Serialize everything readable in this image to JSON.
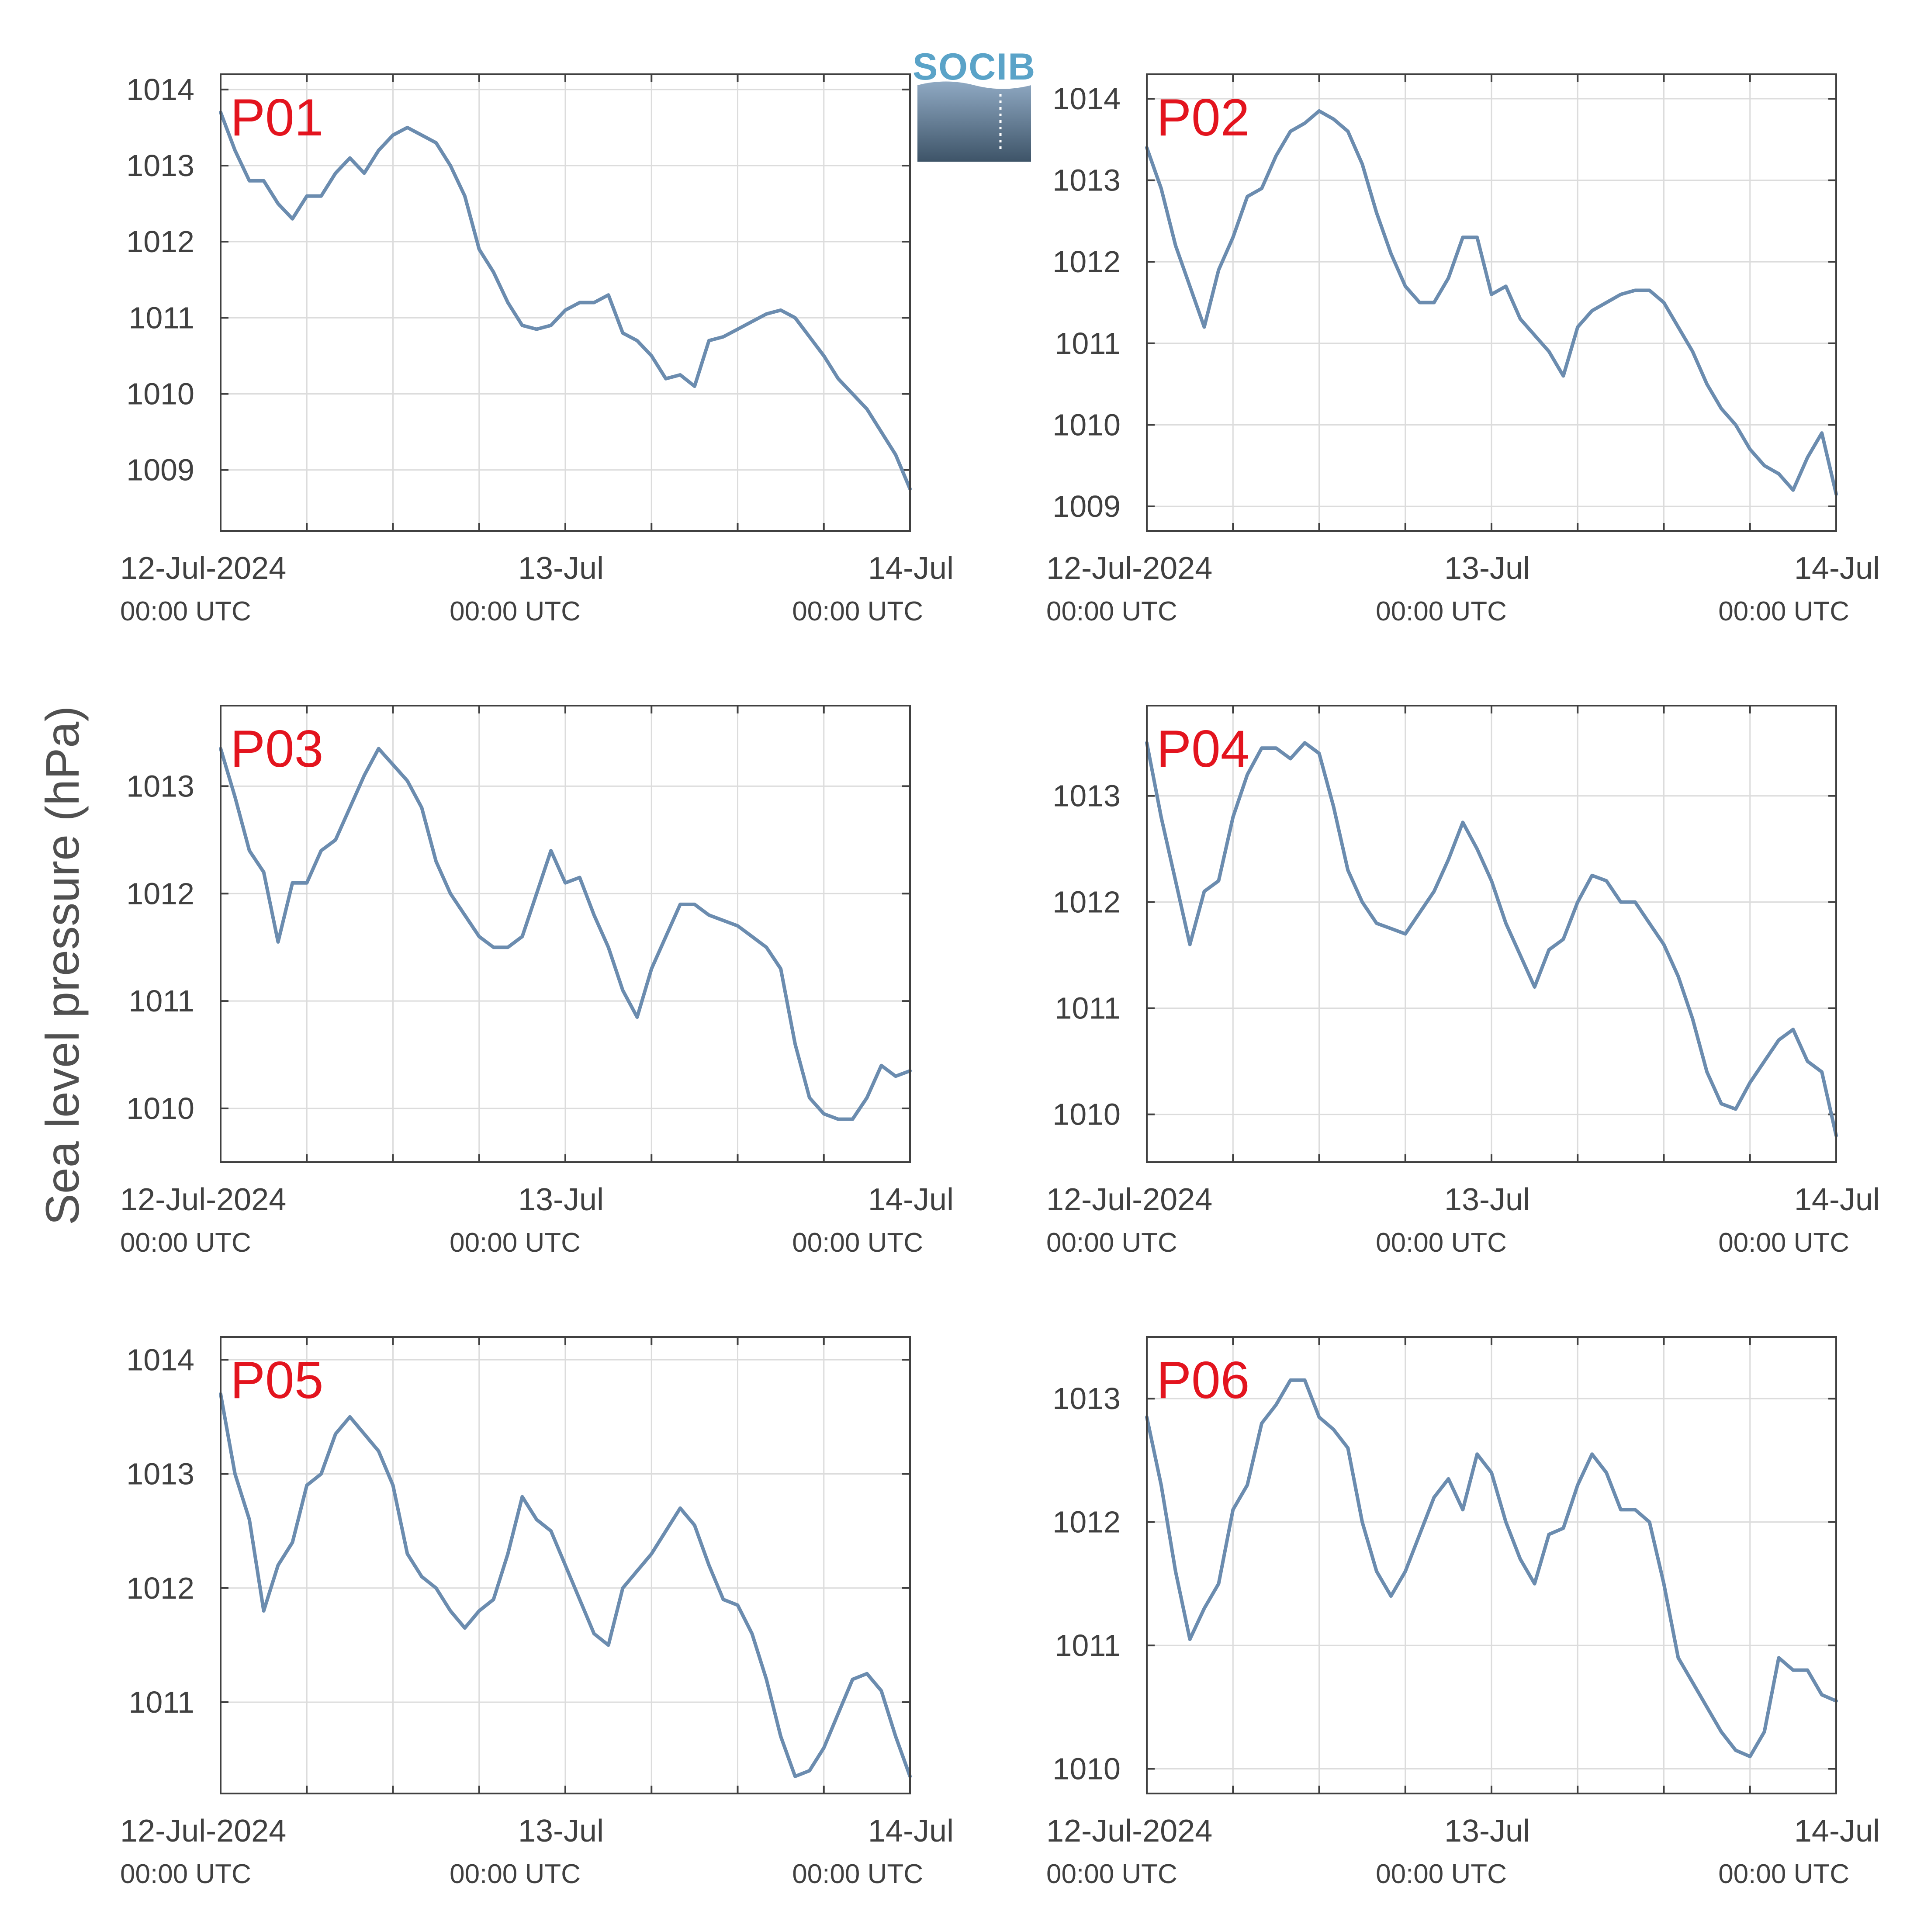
{
  "figure": {
    "ylabel": "Sea level pressure (hPa)",
    "logo_text": "SOCIB",
    "colors": {
      "line": "#6b8caf",
      "panel_label": "#e3141e",
      "axis": "#404040",
      "grid": "#dcdcdc",
      "logo_text": "#5aa3c8"
    }
  },
  "x_axis": {
    "range": [
      "2024-07-12 00:00",
      "2024-07-14 00:00"
    ],
    "grid_every_hours": 6,
    "tick_labels": [
      {
        "date": "12-Jul-2024",
        "time": "00:00 UTC"
      },
      {
        "date": "13-Jul",
        "time": "00:00 UTC"
      },
      {
        "date": "14-Jul",
        "time": "00:00 UTC"
      }
    ]
  },
  "chart_data": [
    {
      "type": "line",
      "label": "P01",
      "ylim": [
        1008.2,
        1014.2
      ],
      "yticks": [
        1009,
        1010,
        1011,
        1012,
        1013,
        1014
      ],
      "x_hours": [
        0,
        1,
        2,
        3,
        4,
        5,
        6,
        7,
        8,
        9,
        10,
        11,
        12,
        13,
        14,
        15,
        16,
        17,
        18,
        19,
        20,
        21,
        22,
        23,
        24,
        25,
        26,
        27,
        28,
        29,
        30,
        31,
        32,
        33,
        34,
        35,
        36,
        37,
        38,
        39,
        40,
        41,
        42,
        43,
        44,
        45,
        46,
        47,
        48
      ],
      "y": [
        1013.7,
        1013.2,
        1012.8,
        1012.8,
        1012.5,
        1012.3,
        1012.6,
        1012.6,
        1012.9,
        1013.1,
        1012.9,
        1013.2,
        1013.4,
        1013.5,
        1013.4,
        1013.3,
        1013.0,
        1012.6,
        1011.9,
        1011.6,
        1011.2,
        1010.9,
        1010.85,
        1010.9,
        1011.1,
        1011.2,
        1011.2,
        1011.3,
        1010.8,
        1010.7,
        1010.5,
        1010.2,
        1010.25,
        1010.1,
        1010.7,
        1010.75,
        1010.85,
        1010.95,
        1011.05,
        1011.1,
        1011.0,
        1010.75,
        1010.5,
        1010.2,
        1010.0,
        1009.8,
        1009.5,
        1009.2,
        1008.75
      ]
    },
    {
      "type": "line",
      "label": "P02",
      "ylim": [
        1008.7,
        1014.3
      ],
      "yticks": [
        1009,
        1010,
        1011,
        1012,
        1013,
        1014
      ],
      "x_hours": [
        0,
        1,
        2,
        3,
        4,
        5,
        6,
        7,
        8,
        9,
        10,
        11,
        12,
        13,
        14,
        15,
        16,
        17,
        18,
        19,
        20,
        21,
        22,
        23,
        24,
        25,
        26,
        27,
        28,
        29,
        30,
        31,
        32,
        33,
        34,
        35,
        36,
        37,
        38,
        39,
        40,
        41,
        42,
        43,
        44,
        45,
        46,
        47,
        48
      ],
      "y": [
        1013.4,
        1012.9,
        1012.2,
        1011.7,
        1011.2,
        1011.9,
        1012.3,
        1012.8,
        1012.9,
        1013.3,
        1013.6,
        1013.7,
        1013.85,
        1013.75,
        1013.6,
        1013.2,
        1012.6,
        1012.1,
        1011.7,
        1011.5,
        1011.5,
        1011.8,
        1012.3,
        1012.3,
        1011.6,
        1011.7,
        1011.3,
        1011.1,
        1010.9,
        1010.6,
        1011.2,
        1011.4,
        1011.5,
        1011.6,
        1011.65,
        1011.65,
        1011.5,
        1011.2,
        1010.9,
        1010.5,
        1010.2,
        1010.0,
        1009.7,
        1009.5,
        1009.4,
        1009.2,
        1009.6,
        1009.9,
        1009.15
      ]
    },
    {
      "type": "line",
      "label": "P03",
      "ylim": [
        1009.5,
        1013.75
      ],
      "yticks": [
        1010,
        1011,
        1012,
        1013
      ],
      "x_hours": [
        0,
        1,
        2,
        3,
        4,
        5,
        6,
        7,
        8,
        9,
        10,
        11,
        12,
        13,
        14,
        15,
        16,
        17,
        18,
        19,
        20,
        21,
        22,
        23,
        24,
        25,
        26,
        27,
        28,
        29,
        30,
        31,
        32,
        33,
        34,
        35,
        36,
        37,
        38,
        39,
        40,
        41,
        42,
        43,
        44,
        45,
        46,
        47,
        48
      ],
      "y": [
        1013.35,
        1012.9,
        1012.4,
        1012.2,
        1011.55,
        1012.1,
        1012.1,
        1012.4,
        1012.5,
        1012.8,
        1013.1,
        1013.35,
        1013.2,
        1013.05,
        1012.8,
        1012.3,
        1012.0,
        1011.8,
        1011.6,
        1011.5,
        1011.5,
        1011.6,
        1012.0,
        1012.4,
        1012.1,
        1012.15,
        1011.8,
        1011.5,
        1011.1,
        1010.85,
        1011.3,
        1011.6,
        1011.9,
        1011.9,
        1011.8,
        1011.75,
        1011.7,
        1011.6,
        1011.5,
        1011.3,
        1010.6,
        1010.1,
        1009.95,
        1009.9,
        1009.9,
        1010.1,
        1010.4,
        1010.3,
        1010.35
      ]
    },
    {
      "type": "line",
      "label": "P04",
      "ylim": [
        1009.55,
        1013.85
      ],
      "yticks": [
        1010,
        1011,
        1012,
        1013
      ],
      "x_hours": [
        0,
        1,
        2,
        3,
        4,
        5,
        6,
        7,
        8,
        9,
        10,
        11,
        12,
        13,
        14,
        15,
        16,
        17,
        18,
        19,
        20,
        21,
        22,
        23,
        24,
        25,
        26,
        27,
        28,
        29,
        30,
        31,
        32,
        33,
        34,
        35,
        36,
        37,
        38,
        39,
        40,
        41,
        42,
        43,
        44,
        45,
        46,
        47,
        48
      ],
      "y": [
        1013.5,
        1012.8,
        1012.2,
        1011.6,
        1012.1,
        1012.2,
        1012.8,
        1013.2,
        1013.45,
        1013.45,
        1013.35,
        1013.5,
        1013.4,
        1012.9,
        1012.3,
        1012.0,
        1011.8,
        1011.75,
        1011.7,
        1011.9,
        1012.1,
        1012.4,
        1012.75,
        1012.5,
        1012.2,
        1011.8,
        1011.5,
        1011.2,
        1011.55,
        1011.65,
        1012.0,
        1012.25,
        1012.2,
        1012.0,
        1012.0,
        1011.8,
        1011.6,
        1011.3,
        1010.9,
        1010.4,
        1010.1,
        1010.05,
        1010.3,
        1010.5,
        1010.7,
        1010.8,
        1010.5,
        1010.4,
        1009.8
      ]
    },
    {
      "type": "line",
      "label": "P05",
      "ylim": [
        1010.2,
        1014.2
      ],
      "yticks": [
        1011,
        1012,
        1013,
        1014
      ],
      "x_hours": [
        0,
        1,
        2,
        3,
        4,
        5,
        6,
        7,
        8,
        9,
        10,
        11,
        12,
        13,
        14,
        15,
        16,
        17,
        18,
        19,
        20,
        21,
        22,
        23,
        24,
        25,
        26,
        27,
        28,
        29,
        30,
        31,
        32,
        33,
        34,
        35,
        36,
        37,
        38,
        39,
        40,
        41,
        42,
        43,
        44,
        45,
        46,
        47,
        48
      ],
      "y": [
        1013.7,
        1013.0,
        1012.6,
        1011.8,
        1012.2,
        1012.4,
        1012.9,
        1013.0,
        1013.35,
        1013.5,
        1013.35,
        1013.2,
        1012.9,
        1012.3,
        1012.1,
        1012.0,
        1011.8,
        1011.65,
        1011.8,
        1011.9,
        1012.3,
        1012.8,
        1012.6,
        1012.5,
        1012.2,
        1011.9,
        1011.6,
        1011.5,
        1012.0,
        1012.15,
        1012.3,
        1012.5,
        1012.7,
        1012.55,
        1012.2,
        1011.9,
        1011.85,
        1011.6,
        1011.2,
        1010.7,
        1010.35,
        1010.4,
        1010.6,
        1010.9,
        1011.2,
        1011.25,
        1011.1,
        1010.7,
        1010.35
      ]
    },
    {
      "type": "line",
      "label": "P06",
      "ylim": [
        1009.8,
        1013.5
      ],
      "yticks": [
        1010,
        1011,
        1012,
        1013
      ],
      "x_hours": [
        0,
        1,
        2,
        3,
        4,
        5,
        6,
        7,
        8,
        9,
        10,
        11,
        12,
        13,
        14,
        15,
        16,
        17,
        18,
        19,
        20,
        21,
        22,
        23,
        24,
        25,
        26,
        27,
        28,
        29,
        30,
        31,
        32,
        33,
        34,
        35,
        36,
        37,
        38,
        39,
        40,
        41,
        42,
        43,
        44,
        45,
        46,
        47,
        48
      ],
      "y": [
        1012.85,
        1012.3,
        1011.6,
        1011.05,
        1011.3,
        1011.5,
        1012.1,
        1012.3,
        1012.8,
        1012.95,
        1013.15,
        1013.15,
        1012.85,
        1012.75,
        1012.6,
        1012.0,
        1011.6,
        1011.4,
        1011.6,
        1011.9,
        1012.2,
        1012.35,
        1012.1,
        1012.55,
        1012.4,
        1012.0,
        1011.7,
        1011.5,
        1011.9,
        1011.95,
        1012.3,
        1012.55,
        1012.4,
        1012.1,
        1012.1,
        1012.0,
        1011.5,
        1010.9,
        1010.7,
        1010.5,
        1010.3,
        1010.15,
        1010.1,
        1010.3,
        1010.9,
        1010.8,
        1010.8,
        1010.6,
        1010.55
      ]
    }
  ]
}
